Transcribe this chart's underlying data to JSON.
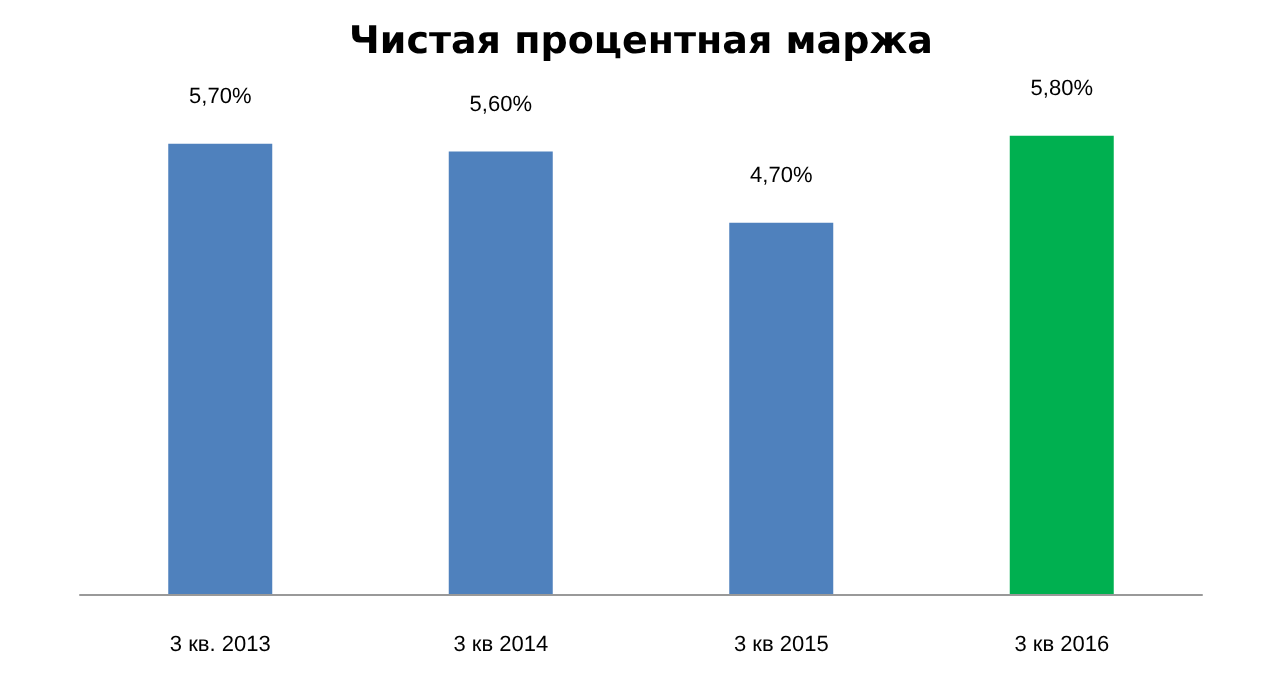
{
  "chart_data": {
    "type": "bar",
    "title": "Чистая процентная маржа",
    "categories": [
      "3 кв. 2013",
      "3 кв 2014",
      "3 кв 2015",
      "3 кв 2016"
    ],
    "values": [
      5.7,
      5.6,
      4.7,
      5.8
    ],
    "colors": [
      "#4f81bd",
      "#4f81bd",
      "#4f81bd",
      "#00b050"
    ],
    "value_labels": [
      "5,70%",
      "5,60%",
      "4,70%",
      "5,80%"
    ]
  }
}
